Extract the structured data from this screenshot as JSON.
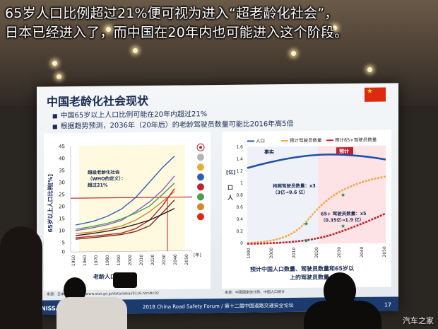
{
  "caption": {
    "line1": "65岁人口比例超过21%便可视为进入“超老龄化社会”，",
    "line2": "日本已经进入了，而中国在20年内也可能进入这个阶段。"
  },
  "slide": {
    "title": "中国老龄化社会现状",
    "bullets": [
      "中国65岁以上人口比例可能在20年内超过21%",
      "根据趋势预测，2036年（20年后）的老龄驾驶员数量可能比2016年高5倍"
    ],
    "left_chart": {
      "ylabel": "65岁以上人口比例[%]",
      "xlabel": "老龄人口比较",
      "xunit": "[年]",
      "yticks": [
        "0",
        "5",
        "10",
        "15",
        "20",
        "25",
        "30",
        "35",
        "40",
        "45"
      ],
      "xticks": [
        "1950",
        "1960",
        "1970",
        "1980",
        "1990",
        "2000",
        "2010",
        "2020",
        "2030",
        "2040",
        "2050"
      ],
      "annotation": [
        "超级老龄化社会",
        "（WHO的定义）：",
        "超过21%"
      ],
      "source": "来源：日本…手册http://www.stat.go.jp/data/sekai/0116.htm#c02"
    },
    "right_chart": {
      "ylabel": "口\n人\n[亿]",
      "legend": [
        "人口",
        "预计驾驶员数量",
        "预计65+驾驶员数量"
      ],
      "tag_fact": "事实",
      "tag_forecast": "预计",
      "yticks": [
        "0",
        "0.2",
        "0.4",
        "0.6",
        "0.8",
        "1",
        "1.2",
        "1.4",
        "1.6"
      ],
      "xticks": [
        "1990",
        "2000",
        "2010",
        "2020",
        "2030",
        "2040",
        "2050"
      ],
      "note1": [
        "持照驾驶员数量：x3",
        "（3亿→9.6 亿）"
      ],
      "note2": [
        "65+ 驾驶员数量：x5",
        "（0.35亿→1.9 亿）"
      ],
      "title": [
        "预计中国人口数量、驾驶员数量和65岁以",
        "上的驾驶员数量"
      ],
      "source": "来源：中国国家统计局、中国人口统计"
    },
    "footer": {
      "brand": "NISSAN",
      "text": "2018 China Road Safety Forum / 第十二届中国道路交通安全论坛",
      "page": "17"
    }
  },
  "watermark": "汽车之家",
  "colors": {
    "population": "#1f4fa8",
    "drivers": "#f7a84a",
    "elderly": "#c0202f",
    "bg_panel": "#ffffff"
  }
}
